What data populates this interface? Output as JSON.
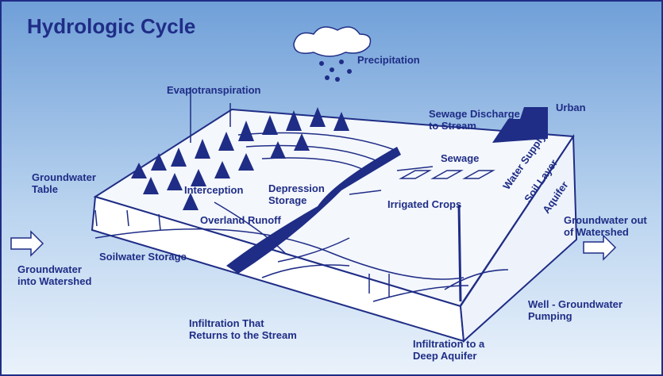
{
  "title": "Hydrologic Cycle",
  "labels": [
    {
      "lines": [
        "Precipitation"
      ]
    },
    {
      "lines": [
        "Evapotranspiration"
      ]
    },
    {
      "lines": [
        "Sewage Discharge",
        "to Stream"
      ]
    },
    {
      "lines": [
        "Urban"
      ]
    },
    {
      "lines": [
        "Sewage"
      ]
    },
    {
      "lines": [
        "Groundwater",
        "Table"
      ]
    },
    {
      "lines": [
        "Interception"
      ]
    },
    {
      "lines": [
        "Depression",
        "Storage"
      ]
    },
    {
      "lines": [
        "Irrigated Crops"
      ]
    },
    {
      "lines": [
        "Overland Runoff"
      ]
    },
    {
      "lines": [
        "Soilwater Storage"
      ]
    },
    {
      "lines": [
        "Groundwater",
        "into Watershed"
      ]
    },
    {
      "lines": [
        "Groundwater out",
        "of Watershed"
      ]
    },
    {
      "lines": [
        "Well - Groundwater",
        "Pumping"
      ]
    },
    {
      "lines": [
        "Infiltration That",
        "Returns to the Stream"
      ]
    },
    {
      "lines": [
        "Infiltration to a",
        "Deep Aquifer"
      ]
    },
    {
      "lines": [
        "Water Supply"
      ]
    },
    {
      "lines": [
        "Soil Layer"
      ]
    },
    {
      "lines": [
        "Aquifer"
      ]
    }
  ]
}
